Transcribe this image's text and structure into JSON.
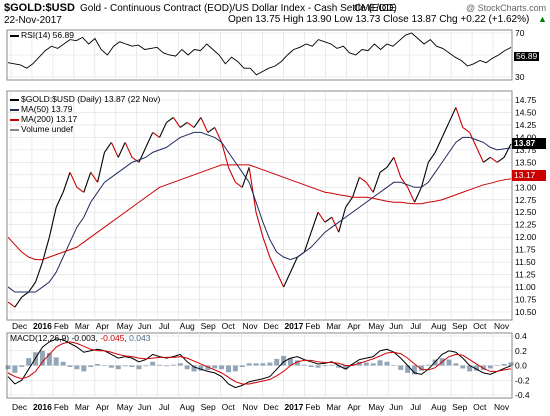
{
  "header": {
    "symbol": "$GOLD:$USD",
    "description": "Gold - Continuous Contract (EOD)/US Dollar Index - Cash Settle (EOD)",
    "exchange": "CME/ICE",
    "date": "22-Nov-2017",
    "quote_line": "Open 13.75  High 13.90  Low 13.73  Close 13.87  Chg +0.22 (+1.62%)",
    "watermark": "@ StockCharts.com",
    "up_arrow": "▲"
  },
  "colors": {
    "price_up": "#000000",
    "price_down": "#cc0000",
    "ma50": "#1f2b5e",
    "ma200": "#cc0000",
    "macd": "#000000",
    "signal": "#cc0000",
    "histogram": "#4a6a8a",
    "gridline": "#dddddd",
    "last_price_box": "#000000"
  },
  "chart_data": [
    {
      "type": "line",
      "panel": "RSI",
      "title": "RSI(14) 56.89",
      "ylim": [
        30,
        70
      ],
      "yticks": [
        70,
        50,
        30
      ],
      "current_value": "56.89",
      "series": [
        {
          "name": "RSI(14)",
          "values": [
            43,
            42,
            41,
            38,
            42,
            48,
            54,
            58,
            56,
            60,
            64,
            63,
            66,
            60,
            65,
            55,
            50,
            58,
            62,
            60,
            58,
            59,
            55,
            56,
            57,
            52,
            50,
            49,
            55,
            50,
            55,
            54,
            60,
            55,
            50,
            42,
            48,
            44,
            38,
            38,
            32,
            35,
            38,
            40,
            44,
            50,
            55,
            57,
            60,
            58,
            64,
            62,
            60,
            56,
            58,
            52,
            50,
            55,
            54,
            60,
            55,
            60,
            58,
            63,
            68,
            70,
            65,
            60,
            64,
            58,
            56,
            52,
            48,
            45,
            40,
            42,
            45,
            43,
            47,
            50,
            54,
            56.89
          ]
        }
      ]
    },
    {
      "type": "line",
      "panel": "Price",
      "title": "$GOLD:$USD (Daily) 13.87 (22 Nov)",
      "ylim": [
        10.5,
        14.75
      ],
      "yticks": [
        14.75,
        14.5,
        14.25,
        14.0,
        13.75,
        13.5,
        13.25,
        13.0,
        12.75,
        12.5,
        12.25,
        12.0,
        11.75,
        11.5,
        11.25,
        11.0,
        10.75,
        10.5
      ],
      "ytick_labels": [
        "14.75",
        "14.50",
        "14.25",
        "14.00",
        "13.75",
        "13.50",
        "13.25",
        "13.00",
        "12.75",
        "12.50",
        "12.25",
        "12.00",
        "11.75",
        "11.50",
        "11.25",
        "11.00",
        "10.75",
        "10.50"
      ],
      "last_labels": {
        "close": "13.87",
        "ma50": "13.79",
        "ma200": "13.17"
      },
      "legend": [
        "$GOLD:$USD (Daily) 13.87 (22 Nov)",
        "MA(50) 13.79",
        "MA(200) 13.17",
        "Volume undef"
      ],
      "x": [
        "Dec",
        "Dec",
        "Dec",
        "Dec",
        "2016",
        "2016",
        "2016",
        "Feb",
        "Feb",
        "Feb",
        "Feb",
        "Mar",
        "Mar",
        "Mar",
        "Apr",
        "Apr",
        "Apr",
        "May",
        "May",
        "May",
        "Jun",
        "Jun",
        "Jun",
        "Jul",
        "Jul",
        "Jul",
        "Aug",
        "Aug",
        "Aug",
        "Sep",
        "Sep",
        "Sep",
        "Oct",
        "Oct",
        "Oct",
        "Nov",
        "Nov",
        "Nov",
        "Dec",
        "Dec",
        "Dec",
        "2017",
        "2017",
        "2017",
        "Feb",
        "Feb",
        "Feb",
        "Mar",
        "Mar",
        "Mar",
        "Apr",
        "Apr",
        "Apr",
        "May",
        "May",
        "May",
        "Jun",
        "Jun",
        "Jun",
        "Jul",
        "Jul",
        "Jul",
        "Aug",
        "Aug",
        "Aug",
        "Sep",
        "Sep",
        "Sep",
        "Oct",
        "Oct",
        "Oct",
        "Nov",
        "Nov",
        "Nov"
      ],
      "series": [
        {
          "name": "$GOLD:$USD (Daily)",
          "values": [
            10.7,
            10.6,
            10.8,
            10.9,
            11.1,
            11.5,
            12.0,
            12.6,
            12.9,
            13.3,
            13.0,
            12.9,
            13.3,
            13.1,
            13.7,
            13.9,
            13.6,
            13.9,
            13.6,
            13.5,
            13.8,
            14.1,
            14.0,
            14.3,
            14.4,
            14.2,
            14.3,
            14.2,
            14.4,
            14.1,
            14.2,
            13.9,
            13.4,
            13.1,
            13.0,
            13.4,
            12.5,
            12.0,
            11.6,
            11.3,
            11.0,
            11.3,
            11.6,
            11.7,
            12.1,
            12.5,
            12.3,
            12.4,
            12.1,
            12.6,
            12.8,
            13.2,
            13.1,
            12.9,
            13.3,
            13.4,
            13.6,
            13.2,
            13.0,
            12.7,
            13.0,
            13.5,
            13.7,
            14.0,
            14.3,
            14.6,
            14.2,
            14.1,
            13.8,
            13.5,
            13.6,
            13.5,
            13.6,
            13.87
          ]
        },
        {
          "name": "MA(50)",
          "values": [
            11.0,
            10.9,
            10.9,
            10.9,
            10.9,
            11.0,
            11.1,
            11.3,
            11.6,
            11.9,
            12.2,
            12.4,
            12.7,
            12.9,
            13.1,
            13.2,
            13.3,
            13.4,
            13.5,
            13.55,
            13.6,
            13.7,
            13.75,
            13.8,
            13.9,
            14.0,
            14.05,
            14.1,
            14.1,
            14.05,
            14.0,
            13.9,
            13.7,
            13.5,
            13.3,
            13.1,
            12.7,
            12.3,
            11.95,
            11.7,
            11.6,
            11.55,
            11.6,
            11.7,
            11.8,
            11.95,
            12.1,
            12.2,
            12.3,
            12.4,
            12.5,
            12.6,
            12.7,
            12.8,
            12.9,
            13.0,
            13.1,
            13.1,
            13.05,
            13.0,
            13.0,
            13.1,
            13.3,
            13.5,
            13.7,
            13.9,
            14.0,
            14.0,
            13.95,
            13.9,
            13.8,
            13.75,
            13.77,
            13.79
          ]
        },
        {
          "name": "MA(200)",
          "values": [
            12.0,
            11.85,
            11.7,
            11.6,
            11.55,
            11.55,
            11.6,
            11.65,
            11.7,
            11.75,
            11.8,
            11.9,
            12.0,
            12.1,
            12.2,
            12.3,
            12.4,
            12.5,
            12.6,
            12.7,
            12.8,
            12.9,
            13.0,
            13.05,
            13.1,
            13.15,
            13.2,
            13.25,
            13.3,
            13.35,
            13.4,
            13.45,
            13.45,
            13.45,
            13.45,
            13.45,
            13.4,
            13.35,
            13.3,
            13.25,
            13.2,
            13.15,
            13.1,
            13.05,
            13.0,
            12.95,
            12.9,
            12.88,
            12.85,
            12.83,
            12.8,
            12.8,
            12.8,
            12.78,
            12.75,
            12.72,
            12.7,
            12.7,
            12.68,
            12.67,
            12.67,
            12.7,
            12.72,
            12.75,
            12.8,
            12.85,
            12.9,
            12.95,
            13.0,
            13.05,
            13.08,
            13.12,
            13.15,
            13.17
          ]
        }
      ]
    },
    {
      "type": "line",
      "panel": "MACD",
      "title": "MACD(12,26,9) -0.003, -0.045, 0.043",
      "legend": [
        "MACD(12,26,9)",
        "-0.003",
        "-0.045",
        "0.043"
      ],
      "ylim": [
        -0.4,
        0.4
      ],
      "yticks": [
        0.4,
        0.2,
        0.0,
        -0.2,
        -0.4
      ],
      "last_labels": [
        "0.043",
        "-0.003",
        "-0.045"
      ],
      "series": [
        {
          "name": "MACD",
          "values": [
            -0.15,
            -0.25,
            -0.2,
            -0.05,
            0.1,
            0.25,
            0.32,
            0.36,
            0.35,
            0.3,
            0.25,
            0.18,
            0.2,
            0.22,
            0.2,
            0.15,
            0.1,
            0.12,
            0.1,
            0.05,
            0.08,
            0.15,
            0.12,
            0.1,
            0.12,
            0.15,
            0.05,
            -0.02,
            -0.05,
            -0.08,
            -0.1,
            -0.15,
            -0.25,
            -0.3,
            -0.27,
            -0.22,
            -0.2,
            -0.18,
            -0.15,
            -0.05,
            0.05,
            0.1,
            0.12,
            0.08,
            0.05,
            0.02,
            0.03,
            0.05,
            0.0,
            -0.05,
            0.02,
            0.08,
            0.1,
            0.12,
            0.2,
            0.22,
            0.18,
            0.1,
            0.0,
            -0.1,
            -0.12,
            -0.05,
            0.05,
            0.15,
            0.2,
            0.18,
            0.1,
            0.0,
            -0.05,
            -0.1,
            -0.12,
            -0.08,
            -0.04,
            -0.003
          ]
        },
        {
          "name": "Signal",
          "values": [
            -0.1,
            -0.15,
            -0.18,
            -0.15,
            -0.08,
            0.05,
            0.15,
            0.25,
            0.3,
            0.32,
            0.3,
            0.26,
            0.22,
            0.2,
            0.2,
            0.18,
            0.15,
            0.13,
            0.12,
            0.1,
            0.09,
            0.1,
            0.11,
            0.11,
            0.11,
            0.12,
            0.1,
            0.06,
            0.02,
            -0.02,
            -0.06,
            -0.1,
            -0.16,
            -0.22,
            -0.25,
            -0.25,
            -0.23,
            -0.21,
            -0.19,
            -0.14,
            -0.08,
            0.0,
            0.05,
            0.07,
            0.07,
            0.05,
            0.04,
            0.04,
            0.03,
            0.0,
            0.0,
            0.03,
            0.06,
            0.09,
            0.13,
            0.17,
            0.18,
            0.16,
            0.1,
            0.02,
            -0.05,
            -0.06,
            -0.03,
            0.05,
            0.12,
            0.15,
            0.14,
            0.08,
            0.02,
            -0.04,
            -0.08,
            -0.08,
            -0.06,
            -0.045
          ]
        }
      ]
    }
  ],
  "xaxis_labels": [
    "Dec",
    "2016",
    "Feb",
    "Mar",
    "Apr",
    "May",
    "Jun",
    "Jul",
    "Aug",
    "Sep",
    "Oct",
    "Nov",
    "Dec",
    "2017",
    "Feb",
    "Mar",
    "Apr",
    "May",
    "Jun",
    "Jul",
    "Aug",
    "Sep",
    "Oct",
    "Nov"
  ],
  "xaxis_bold": [
    "2016",
    "2017"
  ]
}
